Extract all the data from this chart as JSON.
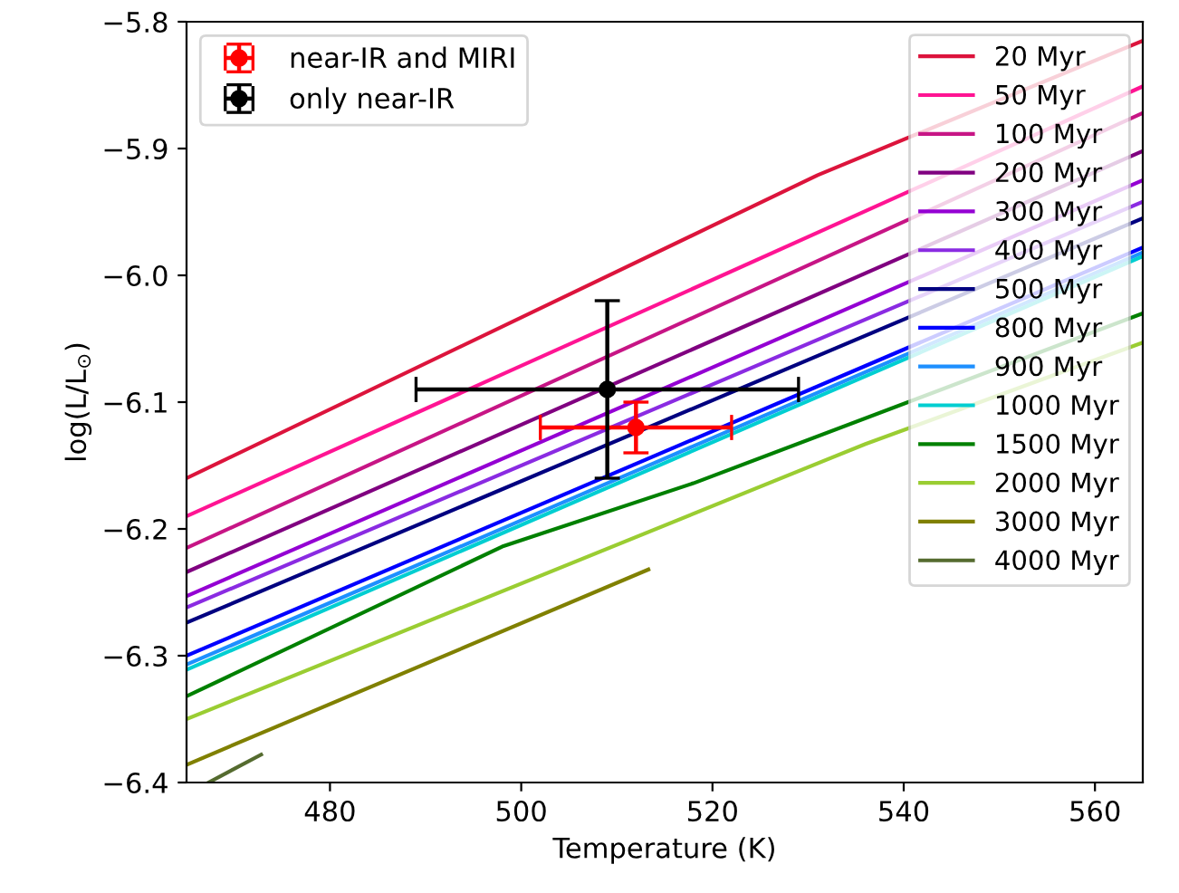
{
  "chart_data": {
    "type": "line",
    "xlabel": "Temperature (K)",
    "ylabel": "log(L/L$_{⊙}$)",
    "xlim": [
      465,
      565
    ],
    "ylim": [
      -6.4,
      -5.8
    ],
    "xticks": [
      480,
      500,
      520,
      540,
      560
    ],
    "yticks": [
      {
        "value": -6.4,
        "label": "−6.4"
      },
      {
        "value": -6.3,
        "label": "−6.3"
      },
      {
        "value": -6.2,
        "label": "−6.2"
      },
      {
        "value": -6.1,
        "label": "−6.1"
      },
      {
        "value": -6.0,
        "label": "−6.0"
      },
      {
        "value": -5.9,
        "label": "−5.9"
      },
      {
        "value": -5.8,
        "label": "−5.8"
      }
    ],
    "grid": false,
    "legend": "top right",
    "marker": "none",
    "line_style": "solid",
    "series": [
      {
        "name": "20 Myr",
        "color": "#dc143c",
        "x": [
          465,
          531,
          565
        ],
        "values": [
          -6.16,
          -5.921,
          -5.815
        ]
      },
      {
        "name": "50 Myr",
        "color": "#ff1493",
        "x": [
          465,
          565
        ],
        "values": [
          -6.19,
          -5.851
        ]
      },
      {
        "name": "100 Myr",
        "color": "#c71585",
        "x": [
          465,
          565
        ],
        "values": [
          -6.215,
          -5.872
        ]
      },
      {
        "name": "200 Myr",
        "color": "#800080",
        "x": [
          465,
          565
        ],
        "values": [
          -6.234,
          -5.902
        ]
      },
      {
        "name": "300 Myr",
        "color": "#9400d3",
        "x": [
          465,
          565
        ],
        "values": [
          -6.253,
          -5.925
        ]
      },
      {
        "name": "400 Myr",
        "color": "#8a2be2",
        "x": [
          465,
          565
        ],
        "values": [
          -6.262,
          -5.942
        ]
      },
      {
        "name": "500 Myr",
        "color": "#000080",
        "x": [
          465,
          565
        ],
        "values": [
          -6.274,
          -5.955
        ]
      },
      {
        "name": "800 Myr",
        "color": "#0000ff",
        "x": [
          465,
          565
        ],
        "values": [
          -6.3,
          -5.978
        ]
      },
      {
        "name": "900 Myr",
        "color": "#1e90ff",
        "x": [
          465,
          565
        ],
        "values": [
          -6.307,
          -5.982
        ]
      },
      {
        "name": "1000 Myr",
        "color": "#00ced1",
        "x": [
          465,
          565
        ],
        "values": [
          -6.311,
          -5.985
        ]
      },
      {
        "name": "1500 Myr",
        "color": "#008000",
        "x": [
          465,
          498,
          518,
          565
        ],
        "values": [
          -6.332,
          -6.214,
          -6.164,
          -6.03
        ]
      },
      {
        "name": "2000 Myr",
        "color": "#9acd32",
        "x": [
          465,
          536,
          565
        ],
        "values": [
          -6.35,
          -6.133,
          -6.053
        ]
      },
      {
        "name": "3000 Myr",
        "color": "#808000",
        "x": [
          465,
          513.3
        ],
        "values": [
          -6.386,
          -6.232
        ]
      },
      {
        "name": "4000 Myr",
        "color": "#556b2f",
        "x": [
          467.3,
          472.8
        ],
        "values": [
          -6.4,
          -6.378
        ]
      },
      {
        "name": "near-IR and MIRI",
        "type": "scatter",
        "marker": "circle",
        "color": "#ff0000",
        "x": [
          512
        ],
        "values": [
          -6.12
        ],
        "errors": [
          0.02
        ],
        "xerrors": [
          10
        ]
      },
      {
        "name": "only near-IR",
        "type": "scatter",
        "marker": "circle",
        "color": "#000000",
        "x": [
          509
        ],
        "values": [
          -6.09
        ],
        "errors": [
          0.07
        ],
        "xerrors": [
          20
        ]
      }
    ]
  }
}
